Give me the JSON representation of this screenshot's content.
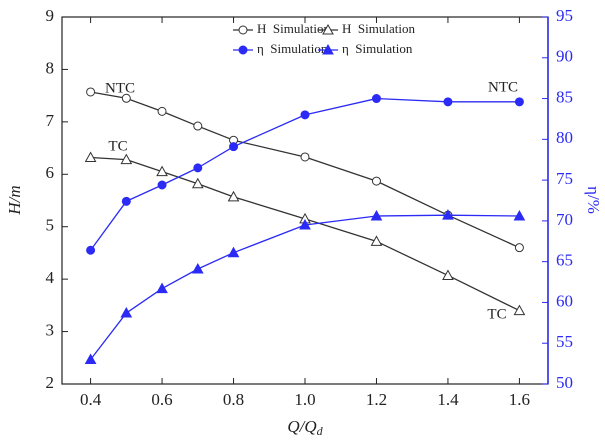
{
  "chart_data": {
    "type": "line",
    "x_label": "Q/Q",
    "x_label_sub": "d",
    "y_label": "H/m",
    "y2_label": "η/%",
    "x": [
      0.4,
      0.5,
      0.6,
      0.7,
      0.8,
      1.0,
      1.2,
      1.4,
      1.6
    ],
    "xlim": [
      0.32,
      1.68
    ],
    "xticks": [
      0.4,
      0.6,
      0.8,
      {
        "value": 1,
        "label": "1.0"
      },
      1.2,
      1.4,
      1.6
    ],
    "ylim": [
      2,
      9
    ],
    "yticks": [
      2,
      3,
      4,
      5,
      6,
      7,
      8,
      9
    ],
    "y2lim": [
      50,
      95
    ],
    "y2ticks": [
      50,
      55,
      60,
      65,
      70,
      75,
      80,
      85,
      90,
      95
    ],
    "y2_color": "#2b2bf5",
    "series": [
      {
        "name": "H  Simulation",
        "color": "#333333",
        "marker": "circle-open",
        "values": [
          7.57,
          7.45,
          7.2,
          6.92,
          6.65,
          6.33,
          5.87,
          5.22,
          4.6
        ]
      },
      {
        "name": "H  Simulation",
        "color": "#333333",
        "marker": "triangle-open",
        "values": [
          6.32,
          6.28,
          6.05,
          5.82,
          5.57,
          5.15,
          4.72,
          4.07,
          3.4
        ]
      },
      {
        "name": "η  Simulation",
        "color": "#2b2bf5",
        "marker": "circle-filled",
        "axis": "y2",
        "values": [
          66.4,
          72.4,
          74.4,
          76.5,
          79.1,
          83.0,
          85.0,
          84.6,
          84.6
        ]
      },
      {
        "name": "η  Simulation",
        "color": "#2b2bf5",
        "marker": "triangle-filled",
        "axis": "y2",
        "values": [
          53.0,
          58.7,
          61.7,
          64.1,
          66.1,
          69.5,
          70.6,
          70.7,
          70.6
        ]
      }
    ],
    "annotations": [
      "NTC",
      "TC",
      "NTC",
      "TC"
    ]
  }
}
